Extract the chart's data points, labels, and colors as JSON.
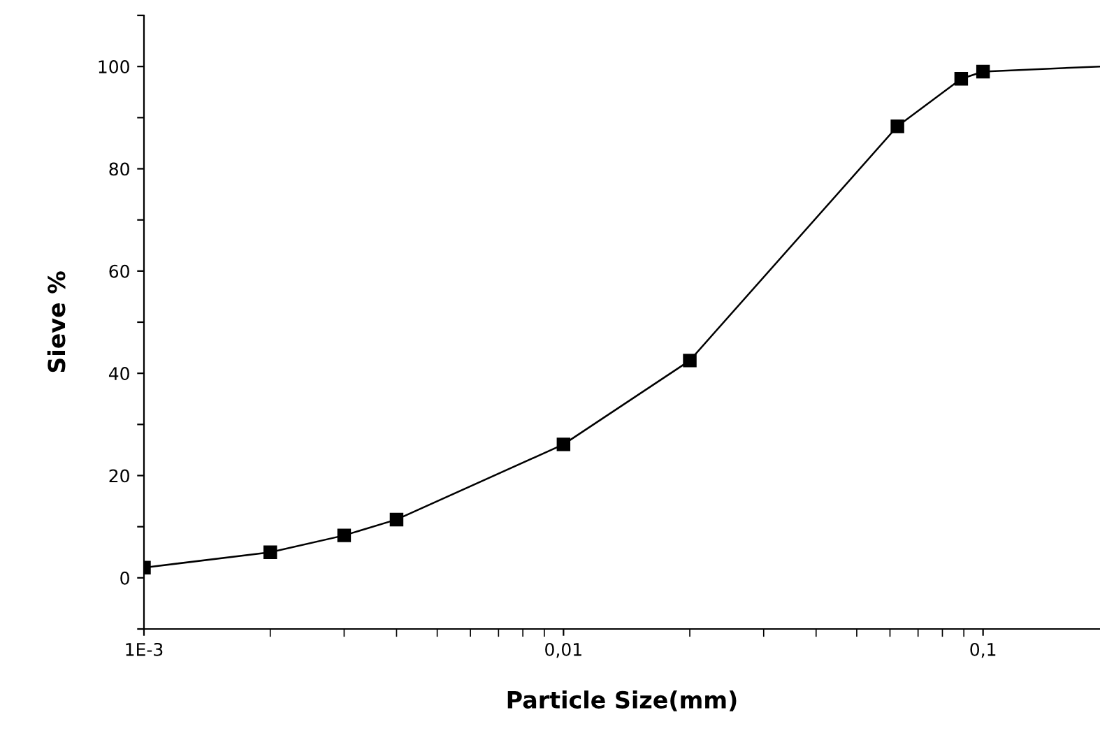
{
  "chart_data": {
    "type": "line",
    "xlabel": "Particle Size(mm)",
    "ylabel": "Sieve %",
    "log": "x",
    "marker": "square",
    "line_style": "solid",
    "grid": false,
    "legend": false,
    "x": [
      0.001,
      0.002,
      0.003,
      0.004,
      0.01,
      0.02,
      0.0625,
      0.0887,
      0.1,
      0.19
    ],
    "series": [
      {
        "color": "#000000",
        "values": [
          2,
          5,
          8.3,
          11.4,
          26.1,
          42.5,
          88.3,
          97.6,
          99,
          100
        ]
      }
    ],
    "xlim": [
      0.001,
      0.19
    ],
    "xticks": [
      {
        "value": 0.001,
        "label": "1E-3"
      },
      {
        "value": 0.01,
        "label": "0,01"
      },
      {
        "value": 0.1,
        "label": "0,1"
      }
    ],
    "ylim": [
      -10,
      110
    ],
    "yticks": [
      {
        "value": -10,
        "label": null
      },
      0,
      {
        "value": 10,
        "label": null
      },
      20,
      {
        "value": 30,
        "label": null
      },
      40,
      {
        "value": 50,
        "label": null
      },
      60,
      {
        "value": 70,
        "label": null
      },
      80,
      {
        "value": 90,
        "label": null
      },
      100,
      {
        "value": 110,
        "label": null
      }
    ]
  }
}
